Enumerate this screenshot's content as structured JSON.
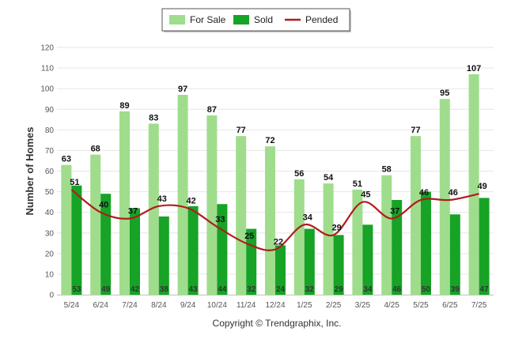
{
  "chart_data": {
    "type": "bar",
    "ylabel": "Number of Homes",
    "ylim": [
      0,
      120
    ],
    "yticks": [
      0,
      10,
      20,
      30,
      40,
      50,
      60,
      70,
      80,
      90,
      100,
      110,
      120
    ],
    "grid": true,
    "legend_position": "top-center",
    "categories": [
      "5/24",
      "6/24",
      "7/24",
      "8/24",
      "9/24",
      "10/24",
      "11/24",
      "12/24",
      "1/25",
      "2/25",
      "3/25",
      "4/25",
      "5/25",
      "6/25",
      "7/25"
    ],
    "series": [
      {
        "name": "For Sale",
        "type": "bar",
        "color": "#9fdd8c",
        "values": [
          63,
          68,
          89,
          83,
          97,
          87,
          77,
          72,
          56,
          54,
          51,
          58,
          77,
          95,
          107
        ]
      },
      {
        "name": "Sold",
        "type": "bar",
        "color": "#16a326",
        "values": [
          53,
          49,
          42,
          38,
          43,
          44,
          32,
          24,
          32,
          29,
          34,
          46,
          50,
          39,
          47
        ]
      },
      {
        "name": "Pended",
        "type": "line",
        "color": "#b01c1c",
        "values": [
          51,
          40,
          37,
          43,
          42,
          33,
          25,
          22,
          34,
          29,
          45,
          37,
          46,
          46,
          49
        ]
      }
    ]
  },
  "footer": {
    "copyright": "Copyright © Trendgraphix, Inc."
  }
}
